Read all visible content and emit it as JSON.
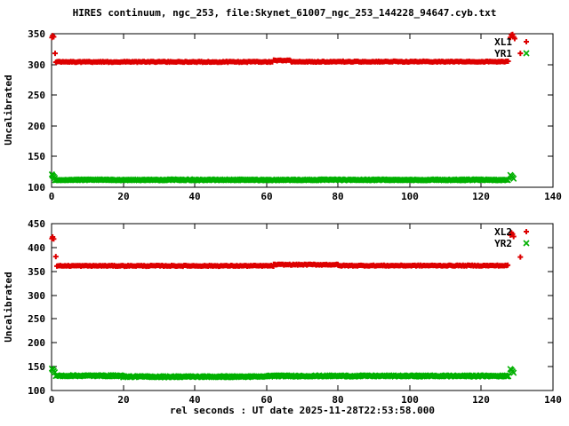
{
  "title": "HIRES continuum, ngc_253, file:Skynet_61007_ngc_253_144228_94647.cyb.txt",
  "colors": {
    "red": "#dd0000",
    "green": "#00b000",
    "axis": "#000000",
    "background": "#ffffff"
  },
  "chart_data": [
    {
      "type": "scatter",
      "xlim": [
        0,
        140
      ],
      "ylim": [
        100,
        350
      ],
      "xticks": [
        0,
        20,
        40,
        60,
        80,
        100,
        120,
        140
      ],
      "yticks": [
        100,
        150,
        200,
        250,
        300,
        350
      ],
      "ylabel": "Uncalibrated",
      "xlabel": "",
      "grid": false,
      "legend_position": "top-right",
      "series": [
        {
          "name": "XL1",
          "color": "#dd0000",
          "marker": "plus",
          "step": 0.32,
          "noise": 0.8,
          "segments": [
            {
              "x0": 1.2,
              "x1": 62,
              "y": 304.2
            },
            {
              "x0": 62,
              "x1": 67,
              "y": 306.5
            },
            {
              "x0": 67,
              "x1": 127.6,
              "y": 304.5
            }
          ],
          "points": [
            [
              0.1,
              344
            ],
            [
              0.3,
              347
            ],
            [
              0.6,
              345
            ],
            [
              1.0,
              318
            ],
            [
              128.1,
              344
            ],
            [
              128.4,
              348
            ],
            [
              128.7,
              349
            ],
            [
              129.0,
              345
            ],
            [
              129.3,
              342
            ],
            [
              130.9,
              318
            ]
          ]
        },
        {
          "name": "YR1",
          "color": "#00b000",
          "marker": "cross",
          "step": 0.32,
          "noise": 0.8,
          "segments": [
            {
              "x0": 1.0,
              "x1": 127.6,
              "y": 112
            }
          ],
          "points": [
            [
              0.1,
              121
            ],
            [
              0.3,
              119
            ],
            [
              0.6,
              117
            ],
            [
              0.9,
              115
            ],
            [
              128.1,
              120
            ],
            [
              128.4,
              118
            ],
            [
              128.7,
              116
            ],
            [
              129.0,
              114
            ]
          ]
        }
      ]
    },
    {
      "type": "scatter",
      "xlim": [
        0,
        140
      ],
      "ylim": [
        100,
        450
      ],
      "xticks": [
        0,
        20,
        40,
        60,
        80,
        100,
        120,
        140
      ],
      "yticks": [
        100,
        150,
        200,
        250,
        300,
        350,
        400,
        450
      ],
      "ylabel": "Uncalibrated",
      "xlabel": "rel seconds : UT date 2025-11-28T22:53:58.000",
      "grid": false,
      "legend_position": "top-right",
      "series": [
        {
          "name": "XL2",
          "color": "#dd0000",
          "marker": "plus",
          "step": 0.32,
          "noise": 1.0,
          "segments": [
            {
              "x0": 1.5,
              "x1": 62,
              "y": 361.5
            },
            {
              "x0": 62,
              "x1": 80,
              "y": 364
            },
            {
              "x0": 80,
              "x1": 127.6,
              "y": 362
            }
          ],
          "points": [
            [
              0.1,
              419
            ],
            [
              0.3,
              422
            ],
            [
              0.6,
              418
            ],
            [
              1.2,
              381
            ],
            [
              128.1,
              426
            ],
            [
              128.4,
              431
            ],
            [
              128.7,
              428
            ],
            [
              129.0,
              423
            ],
            [
              130.9,
              380
            ]
          ]
        },
        {
          "name": "YR2",
          "color": "#00b000",
          "marker": "cross",
          "step": 0.32,
          "noise": 1.4,
          "segments": [
            {
              "x0": 1.2,
              "x1": 20,
              "y": 131
            },
            {
              "x0": 20,
              "x1": 60,
              "y": 129
            },
            {
              "x0": 60,
              "x1": 127.6,
              "y": 130.5
            }
          ],
          "points": [
            [
              0.1,
              146
            ],
            [
              0.3,
              144
            ],
            [
              0.6,
              141
            ],
            [
              0.9,
              138
            ],
            [
              128.1,
              145
            ],
            [
              128.4,
              143
            ],
            [
              128.7,
              140
            ],
            [
              129.0,
              137
            ]
          ]
        }
      ]
    }
  ]
}
